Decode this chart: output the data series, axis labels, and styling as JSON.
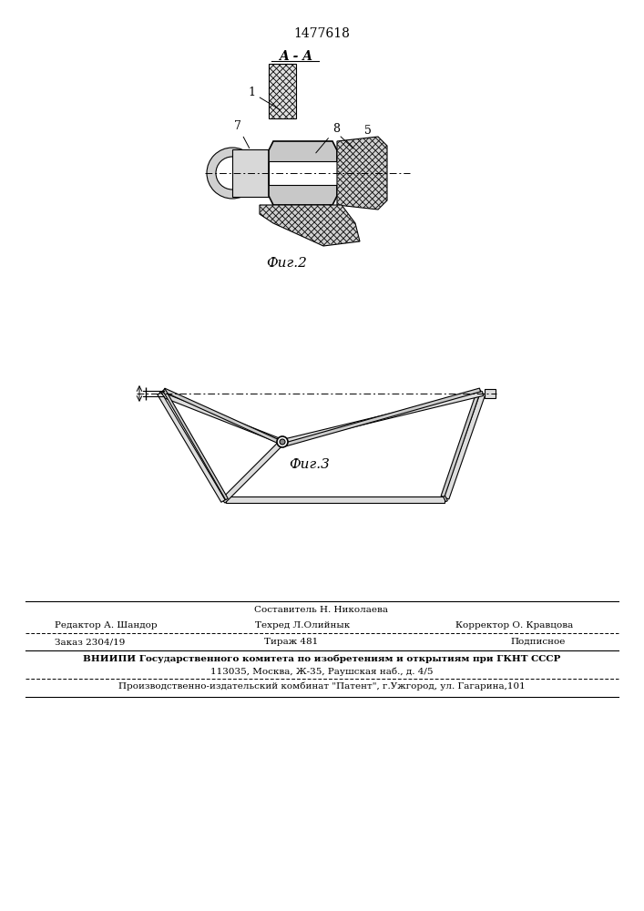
{
  "patent_number": "1477618",
  "fig2_label": "A - A",
  "fig2_caption": "Фиг.2",
  "fig3_caption": "Фиг.3",
  "labels_fig2": [
    "1",
    "7",
    "8",
    "5"
  ],
  "footer_line1_left": "Редактор А. Шандор",
  "footer_line1_center": "Составитель Н. Николаева",
  "footer_line2_center": "Техред Л.Олийнык",
  "footer_line2_right": "Корректор О. Кравцова",
  "footer_order": "Заказ 2304/19",
  "footer_tirazh": "Тираж 481",
  "footer_podpisnoe": "Подписное",
  "footer_vniipи": "ВНИИПИ Государственного комитета по изобретениям и открытиям при ГКНТ СССР",
  "footer_address": "113035, Москва, Ж-35, Раушская наб., д. 4/5",
  "footer_kombinat": "Производственно-издательский комбинат \"Патент\", г.Ужгород, ул. Гагарина,101",
  "bg_color": "#ffffff",
  "line_color": "#000000"
}
